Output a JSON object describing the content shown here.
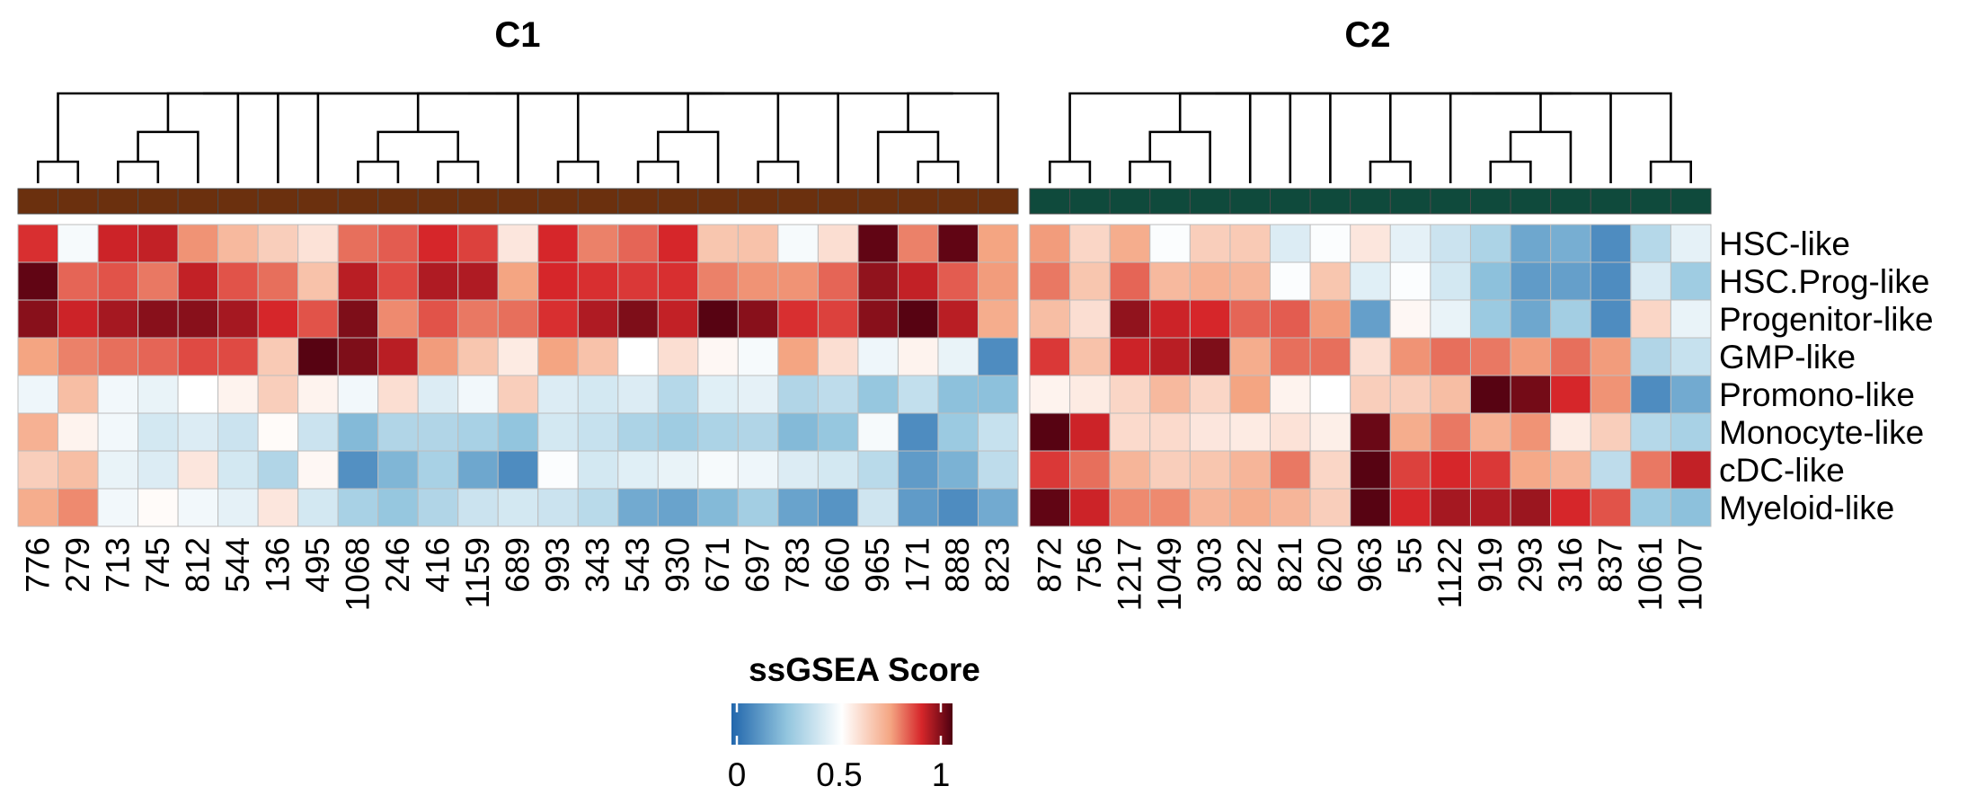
{
  "chart_data": {
    "type": "heatmap",
    "legend": {
      "title": "ssGSEA Score",
      "ticks": [
        "0",
        "0.5",
        "1"
      ],
      "range": [
        0,
        1
      ],
      "colors": [
        "#2166ac",
        "#ffffff",
        "#b2182b",
        "#4d0010"
      ]
    },
    "rows": [
      "HSC-like",
      "HSC.Prog-like",
      "Progenitor-like",
      "GMP-like",
      "Promono-like",
      "Monocyte-like",
      "cDC-like",
      "Myeloid-like"
    ],
    "groups": [
      {
        "name": "C1",
        "color": "#6b300e",
        "columns": [
          "776",
          "279",
          "713",
          "745",
          "812",
          "544",
          "136",
          "495",
          "1068",
          "246",
          "416",
          "1159",
          "689",
          "993",
          "343",
          "543",
          "930",
          "671",
          "697",
          "783",
          "660",
          "965",
          "171",
          "888",
          "823"
        ],
        "values": [
          [
            0.85,
            0.48,
            0.87,
            0.88,
            0.74,
            0.67,
            0.62,
            0.57,
            0.78,
            0.8,
            0.86,
            0.83,
            0.56,
            0.86,
            0.76,
            0.79,
            0.86,
            0.64,
            0.65,
            0.48,
            0.58,
            0.98,
            0.76,
            0.98,
            0.72
          ],
          [
            0.98,
            0.79,
            0.81,
            0.77,
            0.88,
            0.81,
            0.78,
            0.65,
            0.89,
            0.82,
            0.9,
            0.9,
            0.72,
            0.86,
            0.85,
            0.84,
            0.85,
            0.76,
            0.74,
            0.74,
            0.79,
            0.93,
            0.88,
            0.8,
            0.73
          ],
          [
            0.94,
            0.87,
            0.91,
            0.94,
            0.94,
            0.91,
            0.86,
            0.81,
            0.95,
            0.75,
            0.81,
            0.77,
            0.78,
            0.85,
            0.9,
            0.95,
            0.88,
            0.99,
            0.94,
            0.85,
            0.83,
            0.94,
            0.99,
            0.89,
            0.7
          ],
          [
            0.72,
            0.76,
            0.78,
            0.79,
            0.82,
            0.82,
            0.63,
            0.99,
            0.95,
            0.89,
            0.73,
            0.64,
            0.55,
            0.72,
            0.65,
            0.5,
            0.58,
            0.52,
            0.48,
            0.72,
            0.58,
            0.46,
            0.53,
            0.45,
            0.1
          ],
          [
            0.46,
            0.66,
            0.47,
            0.45,
            0.5,
            0.53,
            0.62,
            0.53,
            0.47,
            0.58,
            0.42,
            0.47,
            0.62,
            0.42,
            0.4,
            0.42,
            0.33,
            0.43,
            0.44,
            0.32,
            0.35,
            0.26,
            0.36,
            0.24,
            0.24
          ],
          [
            0.69,
            0.53,
            0.47,
            0.4,
            0.42,
            0.38,
            0.51,
            0.38,
            0.22,
            0.32,
            0.32,
            0.3,
            0.25,
            0.4,
            0.37,
            0.31,
            0.28,
            0.31,
            0.32,
            0.22,
            0.26,
            0.48,
            0.1,
            0.27,
            0.37
          ],
          [
            0.62,
            0.66,
            0.45,
            0.42,
            0.56,
            0.4,
            0.32,
            0.52,
            0.11,
            0.21,
            0.3,
            0.17,
            0.1,
            0.49,
            0.4,
            0.43,
            0.45,
            0.48,
            0.46,
            0.42,
            0.4,
            0.34,
            0.14,
            0.2,
            0.35
          ],
          [
            0.7,
            0.75,
            0.47,
            0.51,
            0.47,
            0.44,
            0.56,
            0.4,
            0.3,
            0.26,
            0.32,
            0.38,
            0.4,
            0.38,
            0.34,
            0.18,
            0.16,
            0.22,
            0.29,
            0.16,
            0.12,
            0.39,
            0.14,
            0.1,
            0.18
          ]
        ]
      },
      {
        "name": "C2",
        "color": "#0f4a3c",
        "columns": [
          "872",
          "756",
          "1217",
          "1049",
          "303",
          "822",
          "821",
          "620",
          "963",
          "55",
          "1122",
          "919",
          "293",
          "316",
          "837",
          "1061",
          "1007"
        ],
        "values": [
          [
            0.73,
            0.6,
            0.7,
            0.49,
            0.62,
            0.63,
            0.42,
            0.49,
            0.56,
            0.44,
            0.38,
            0.31,
            0.17,
            0.19,
            0.1,
            0.33,
            0.44
          ],
          [
            0.77,
            0.64,
            0.79,
            0.67,
            0.69,
            0.68,
            0.49,
            0.64,
            0.43,
            0.49,
            0.4,
            0.24,
            0.14,
            0.15,
            0.1,
            0.41,
            0.28
          ],
          [
            0.66,
            0.58,
            0.93,
            0.87,
            0.86,
            0.79,
            0.8,
            0.73,
            0.15,
            0.52,
            0.45,
            0.27,
            0.17,
            0.29,
            0.1,
            0.6,
            0.45
          ],
          [
            0.84,
            0.65,
            0.87,
            0.89,
            0.95,
            0.7,
            0.78,
            0.78,
            0.58,
            0.74,
            0.78,
            0.77,
            0.73,
            0.78,
            0.73,
            0.32,
            0.37
          ],
          [
            0.53,
            0.55,
            0.6,
            0.67,
            0.6,
            0.72,
            0.53,
            0.5,
            0.62,
            0.62,
            0.66,
            0.99,
            0.96,
            0.86,
            0.74,
            0.1,
            0.18
          ],
          [
            0.99,
            0.87,
            0.59,
            0.59,
            0.56,
            0.55,
            0.57,
            0.54,
            0.97,
            0.7,
            0.77,
            0.69,
            0.74,
            0.55,
            0.62,
            0.33,
            0.3
          ],
          [
            0.84,
            0.78,
            0.68,
            0.62,
            0.64,
            0.68,
            0.77,
            0.6,
            0.99,
            0.83,
            0.86,
            0.84,
            0.71,
            0.68,
            0.35,
            0.77,
            0.88
          ],
          [
            0.98,
            0.87,
            0.75,
            0.75,
            0.68,
            0.7,
            0.68,
            0.62,
            0.99,
            0.86,
            0.91,
            0.9,
            0.92,
            0.86,
            0.81,
            0.27,
            0.24
          ]
        ]
      }
    ]
  }
}
